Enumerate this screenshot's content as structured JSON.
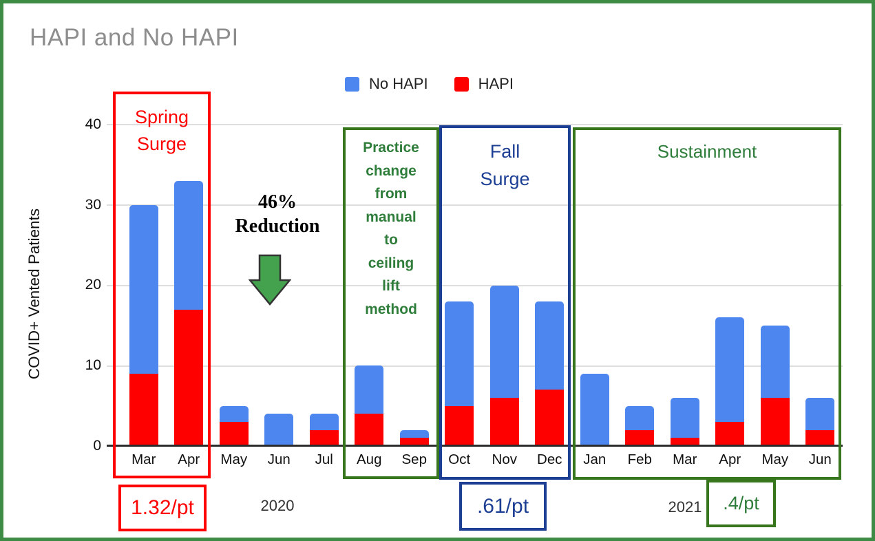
{
  "page": {
    "title": "HAPI and No HAPI"
  },
  "legend": {
    "items": [
      {
        "label": "No HAPI",
        "color": "#4d86ef"
      },
      {
        "label": "HAPI",
        "color": "#fe0000"
      }
    ]
  },
  "y_axis": {
    "label": "COVID+ Vented Patients",
    "ticks": [
      "0",
      "10",
      "20",
      "30",
      "40"
    ]
  },
  "chart_data": {
    "type": "bar",
    "stacked": true,
    "title": "HAPI and No HAPI",
    "xlabel": "",
    "ylabel": "COVID+ Vented Patients",
    "ylim": [
      0,
      40
    ],
    "yticks": [
      0,
      10,
      20,
      30,
      40
    ],
    "grid": true,
    "legend_position": "top",
    "categories": [
      "Mar",
      "Apr",
      "May",
      "Jun",
      "Jul",
      "Aug",
      "Sep",
      "Oct",
      "Nov",
      "Dec",
      "Jan",
      "Feb",
      "Mar",
      "Apr",
      "May",
      "Jun"
    ],
    "series": [
      {
        "name": "HAPI",
        "color": "#fe0000",
        "values": [
          9,
          17,
          3,
          0,
          2,
          4,
          1,
          5,
          6,
          7,
          0,
          2,
          1,
          3,
          6,
          2
        ]
      },
      {
        "name": "No HAPI",
        "color": "#4d86ef",
        "values": [
          21,
          16,
          2,
          4,
          2,
          6,
          1,
          13,
          14,
          11,
          9,
          3,
          5,
          13,
          9,
          4
        ]
      }
    ],
    "totals": [
      30,
      33,
      5,
      4,
      4,
      10,
      2,
      18,
      20,
      18,
      9,
      5,
      6,
      16,
      15,
      6
    ]
  },
  "annotations": {
    "spring_surge": {
      "text": "Spring Surge",
      "lines": [
        "Spring",
        "Surge"
      ],
      "color": "#fe0000"
    },
    "reduction": {
      "text": "46% Reduction",
      "lines": [
        "46%",
        "Reduction"
      ]
    },
    "practice_change": {
      "text": "Practice change from manual to ceiling lift method",
      "lines": [
        "Practice",
        "change",
        "from",
        "manual",
        "to",
        "ceiling",
        "lift",
        "method"
      ],
      "color": "#2f7d3a"
    },
    "fall_surge": {
      "text": "Fall Surge",
      "lines": [
        "Fall",
        "Surge"
      ],
      "color": "#1c3f94"
    },
    "sustainment": {
      "text": "Sustainment",
      "color": "#2f7d3a"
    },
    "rate_spring": {
      "text": "1.32/pt",
      "color": "#fe0000"
    },
    "rate_fall": {
      "text": ".61/pt",
      "color": "#1c3f94"
    },
    "rate_sustain": {
      "text": ".4/pt",
      "color": "#2f7d3a"
    },
    "year_2020": "2020",
    "year_2021": "2021"
  },
  "colors": {
    "frame_border": "#3d8b45",
    "title": "#8d8d8d",
    "grid": "#dedede",
    "axis": "#2b2b2b",
    "bar_blue": "#4d86ef",
    "bar_red": "#fe0000",
    "dark_blue": "#1c3f94",
    "green_text": "#2f7d3a",
    "green_border": "#38761d",
    "arrow_fill": "#44a24e"
  }
}
